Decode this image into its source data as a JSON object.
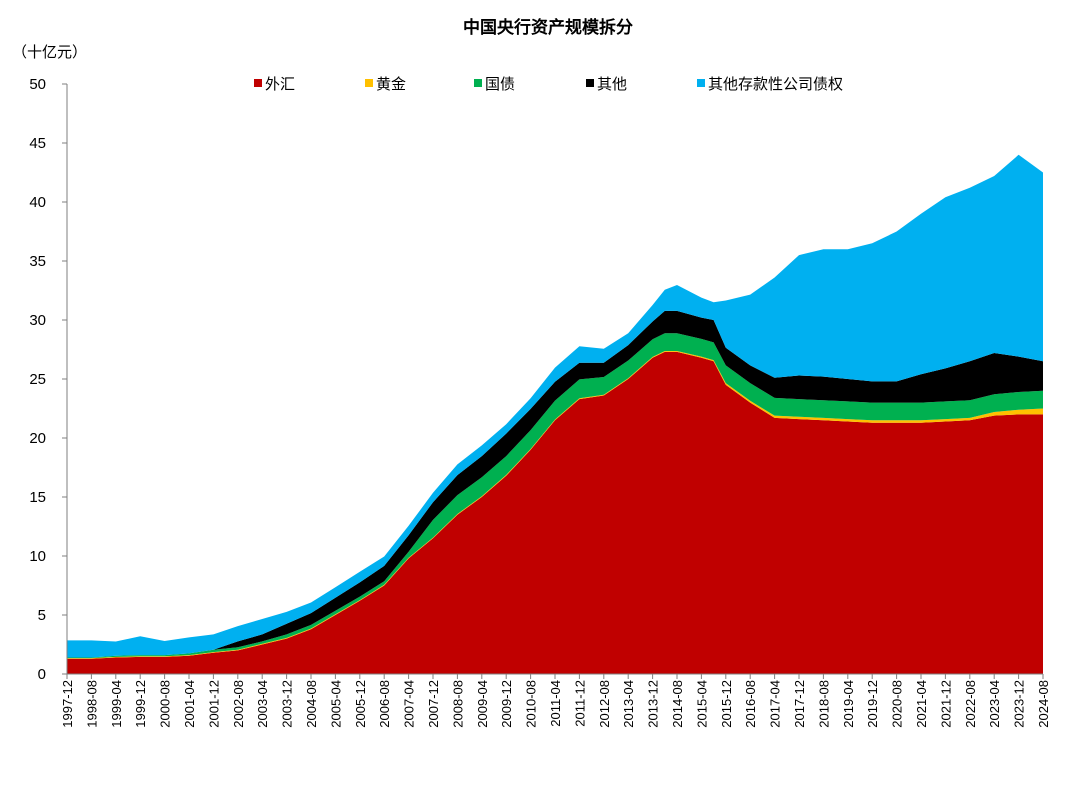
{
  "chart_data": {
    "type": "area",
    "stacked": true,
    "title": "中国央行资产规模拆分",
    "ylabel": "（十亿元）",
    "xlabel": "",
    "ylim": [
      0,
      50
    ],
    "yticks": [
      0,
      5,
      10,
      15,
      20,
      25,
      30,
      35,
      40,
      45,
      50
    ],
    "grid": false,
    "legend_position": "top",
    "x_tick_labels": [
      "1997-12",
      "1998-08",
      "1999-04",
      "1999-12",
      "2000-08",
      "2001-04",
      "2001-12",
      "2002-08",
      "2003-04",
      "2003-12",
      "2004-08",
      "2005-04",
      "2005-12",
      "2006-08",
      "2007-04",
      "2007-12",
      "2008-08",
      "2009-04",
      "2009-12",
      "2010-08",
      "2011-04",
      "2011-12",
      "2012-08",
      "2013-04",
      "2013-12",
      "2014-08",
      "2015-04",
      "2015-12",
      "2016-08",
      "2017-04",
      "2017-12",
      "2018-08",
      "2019-04",
      "2019-12",
      "2020-08",
      "2021-04",
      "2021-12",
      "2022-08",
      "2023-04",
      "2023-12",
      "2024-08"
    ],
    "x": [
      "1997-12",
      "1998-08",
      "1999-04",
      "1999-12",
      "2000-08",
      "2001-04",
      "2001-12",
      "2002-08",
      "2003-04",
      "2003-12",
      "2004-08",
      "2005-04",
      "2005-12",
      "2006-08",
      "2007-04",
      "2007-12",
      "2008-08",
      "2009-04",
      "2009-12",
      "2010-08",
      "2011-04",
      "2011-12",
      "2012-08",
      "2013-04",
      "2013-12",
      "2014-04",
      "2014-08",
      "2015-04",
      "2015-08",
      "2015-12",
      "2016-08",
      "2017-04",
      "2017-12",
      "2018-08",
      "2019-04",
      "2019-12",
      "2020-08",
      "2021-04",
      "2021-12",
      "2022-08",
      "2023-04",
      "2023-12",
      "2024-08"
    ],
    "series": [
      {
        "name": "外汇",
        "color": "#c00000",
        "values": [
          1.3,
          1.3,
          1.4,
          1.45,
          1.45,
          1.55,
          1.8,
          2.0,
          2.5,
          3.0,
          3.8,
          5.0,
          6.2,
          7.5,
          9.8,
          11.5,
          13.5,
          15.0,
          16.8,
          19.0,
          21.5,
          23.3,
          23.6,
          25.0,
          26.8,
          27.3,
          27.3,
          26.8,
          26.5,
          24.5,
          23.0,
          21.7,
          21.6,
          21.5,
          21.4,
          21.3,
          21.3,
          21.3,
          21.4,
          21.5,
          21.9,
          22.0,
          22.0
        ]
      },
      {
        "name": "黄金",
        "color": "#ffc000",
        "values": [
          0.05,
          0.05,
          0.05,
          0.05,
          0.05,
          0.05,
          0.06,
          0.06,
          0.06,
          0.06,
          0.06,
          0.06,
          0.06,
          0.06,
          0.06,
          0.06,
          0.06,
          0.07,
          0.07,
          0.07,
          0.07,
          0.07,
          0.07,
          0.07,
          0.07,
          0.07,
          0.07,
          0.1,
          0.1,
          0.15,
          0.15,
          0.2,
          0.2,
          0.2,
          0.2,
          0.2,
          0.2,
          0.2,
          0.2,
          0.2,
          0.3,
          0.4,
          0.5
        ]
      },
      {
        "name": "国债",
        "color": "#00b050",
        "values": [
          0.05,
          0.05,
          0.1,
          0.1,
          0.1,
          0.15,
          0.2,
          0.2,
          0.2,
          0.3,
          0.3,
          0.3,
          0.3,
          0.3,
          0.5,
          1.5,
          1.6,
          1.6,
          1.6,
          1.6,
          1.6,
          1.6,
          1.5,
          1.5,
          1.5,
          1.5,
          1.5,
          1.5,
          1.5,
          1.5,
          1.5,
          1.5,
          1.5,
          1.5,
          1.5,
          1.5,
          1.5,
          1.5,
          1.5,
          1.5,
          1.5,
          1.5,
          1.5
        ]
      },
      {
        "name": "其他",
        "color": "#000000",
        "values": [
          0.0,
          0.0,
          0.0,
          0.0,
          0.0,
          0.0,
          0.0,
          0.5,
          0.6,
          0.9,
          1.0,
          1.1,
          1.2,
          1.3,
          1.4,
          1.5,
          1.7,
          1.8,
          1.9,
          1.8,
          1.6,
          1.4,
          1.2,
          1.3,
          1.5,
          1.9,
          1.9,
          1.8,
          1.9,
          1.5,
          1.5,
          1.7,
          2.0,
          2.0,
          1.9,
          1.8,
          1.8,
          2.4,
          2.8,
          3.3,
          3.5,
          3.0,
          2.5
        ]
      },
      {
        "name": "其他存款性公司债权",
        "color": "#00b0f0",
        "values": [
          1.45,
          1.45,
          1.2,
          1.6,
          1.2,
          1.35,
          1.3,
          1.3,
          1.3,
          1.0,
          0.9,
          0.9,
          0.9,
          0.8,
          0.8,
          0.8,
          0.9,
          0.9,
          0.8,
          0.9,
          1.2,
          1.4,
          1.2,
          1.0,
          1.4,
          1.8,
          2.2,
          1.7,
          1.5,
          4.0,
          6.0,
          8.5,
          10.2,
          10.8,
          11.0,
          11.7,
          12.7,
          13.6,
          14.5,
          14.7,
          15.0,
          17.1,
          16.0
        ]
      }
    ]
  }
}
